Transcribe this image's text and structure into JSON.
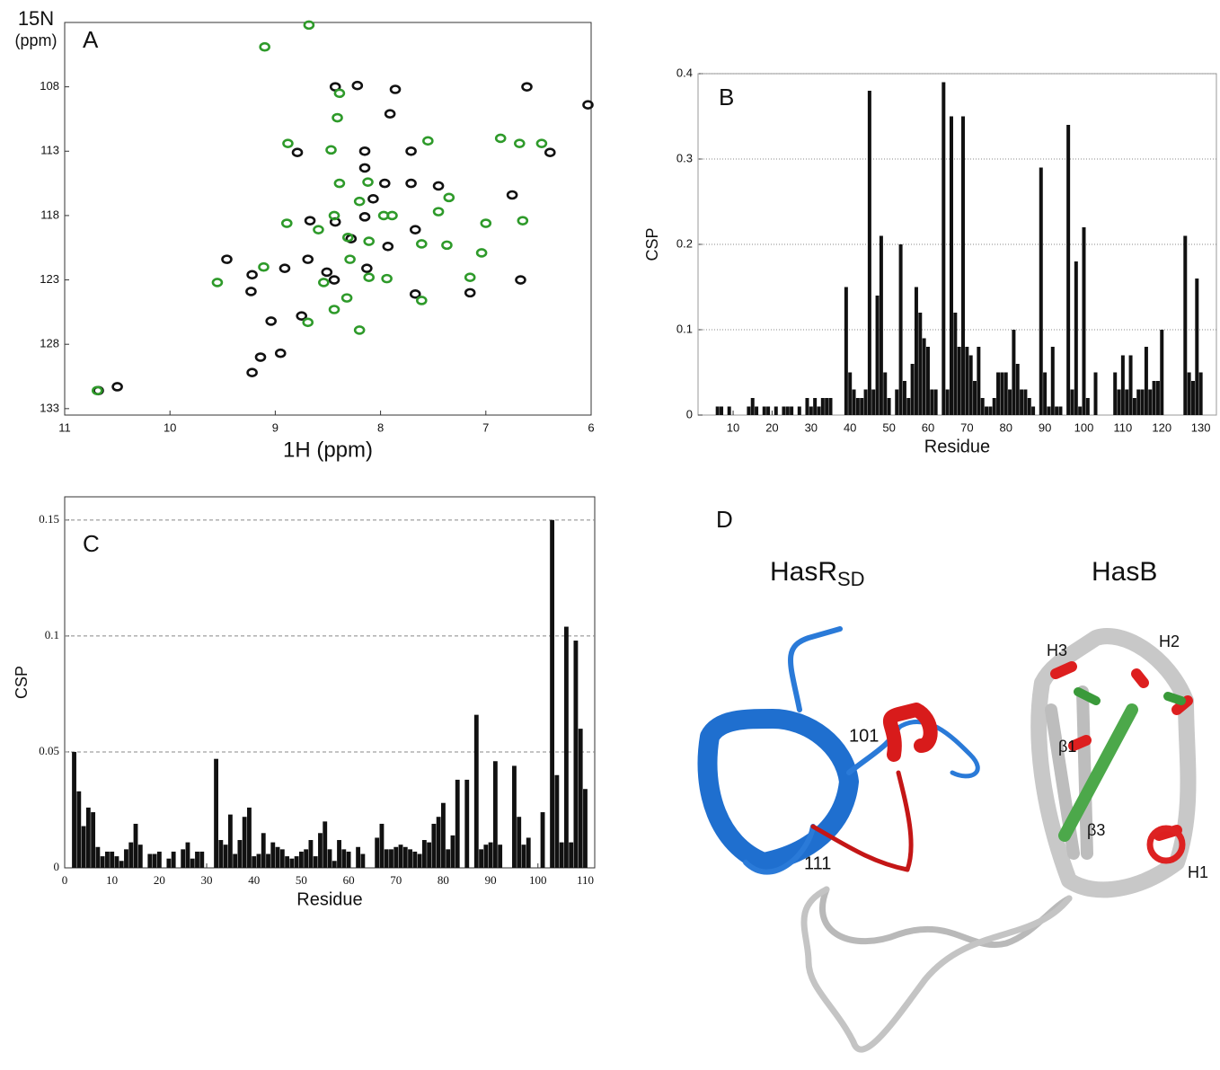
{
  "chart_data": [
    {
      "type": "scatter",
      "panel_label": "A",
      "x_label": "1H (ppm)",
      "y_label_lines": [
        "15N",
        "(ppm)"
      ],
      "xlim": [
        11,
        6
      ],
      "ylim": [
        133.5,
        103
      ],
      "xticks": [
        11,
        10,
        9,
        8,
        7,
        6
      ],
      "yticks": [
        108,
        113,
        118,
        123,
        128,
        133
      ],
      "series": [
        {
          "color": "#111111",
          "x": [
            8.43,
            8.22,
            7.86,
            7.91,
            6.03,
            6.61,
            8.79,
            8.15,
            6.39,
            8.15,
            7.71,
            7.71,
            7.45,
            6.75,
            7.96,
            8.67,
            8.43,
            7.93,
            7.67,
            9.46,
            9.23,
            9.04,
            8.75,
            7.15,
            6.67,
            7.67,
            8.69,
            8.44,
            8.51,
            8.13,
            9.14,
            9.22,
            8.95,
            10.5,
            10.68,
            8.28,
            8.91,
            9.22,
            8.07,
            8.15
          ],
          "values": [
            108.0,
            107.9,
            108.2,
            110.1,
            109.4,
            108.0,
            113.1,
            113.0,
            113.1,
            114.3,
            113.0,
            115.5,
            115.7,
            116.4,
            115.5,
            118.4,
            118.5,
            120.4,
            119.1,
            121.4,
            123.9,
            126.2,
            125.8,
            124.0,
            123.0,
            124.1,
            121.4,
            123.0,
            122.4,
            122.1,
            129.0,
            130.2,
            128.7,
            131.3,
            131.6,
            119.8,
            122.1,
            122.6,
            116.7,
            118.1
          ]
        },
        {
          "color": "#2e9a2a",
          "x": [
            9.1,
            8.39,
            8.41,
            8.47,
            8.88,
            8.39,
            8.12,
            8.2,
            8.44,
            8.59,
            8.31,
            8.11,
            8.29,
            8.11,
            8.44,
            8.2,
            8.69,
            7.89,
            7.61,
            7.35,
            7.55,
            7.37,
            6.86,
            6.68,
            6.47,
            6.65,
            7.0,
            9.55,
            9.11,
            10.69,
            8.89,
            8.54,
            8.32,
            7.97,
            7.45,
            7.94,
            7.15,
            8.68,
            7.04,
            7.61
          ],
          "values": [
            104.9,
            108.5,
            110.4,
            112.9,
            112.4,
            115.5,
            115.4,
            116.9,
            118.0,
            119.1,
            119.7,
            120.0,
            121.4,
            122.8,
            125.3,
            126.9,
            126.3,
            118.0,
            120.2,
            116.6,
            112.2,
            120.3,
            112.0,
            112.4,
            112.4,
            118.4,
            118.6,
            123.2,
            122.0,
            131.6,
            118.6,
            123.2,
            124.4,
            118.0,
            117.7,
            122.9,
            122.8,
            103.2,
            120.9,
            124.6
          ]
        }
      ]
    },
    {
      "type": "bar",
      "panel_label": "B",
      "x_label": "Residue",
      "y_label": "CSP",
      "color": "#111111",
      "grid": true,
      "xlim": [
        1,
        134
      ],
      "ylim": [
        0,
        0.4
      ],
      "xticks": [
        10,
        20,
        30,
        40,
        50,
        60,
        70,
        80,
        90,
        100,
        110,
        120,
        130
      ],
      "yticks": [
        0,
        0.1,
        0.2,
        0.3,
        0.4
      ],
      "x": [
        6,
        7,
        9,
        14,
        15,
        16,
        18,
        19,
        21,
        23,
        24,
        25,
        27,
        29,
        30,
        31,
        32,
        33,
        34,
        35,
        39,
        40,
        41,
        42,
        43,
        44,
        45,
        46,
        47,
        48,
        49,
        50,
        52,
        53,
        54,
        55,
        56,
        57,
        58,
        59,
        60,
        61,
        62,
        64,
        65,
        66,
        67,
        68,
        69,
        70,
        71,
        72,
        73,
        74,
        75,
        76,
        77,
        78,
        79,
        80,
        81,
        82,
        83,
        84,
        85,
        86,
        87,
        89,
        90,
        91,
        92,
        93,
        94,
        96,
        97,
        98,
        99,
        100,
        101,
        103,
        108,
        109,
        110,
        111,
        112,
        113,
        114,
        115,
        116,
        117,
        118,
        119,
        120,
        126,
        127,
        128,
        129,
        130
      ],
      "values": [
        0.01,
        0.01,
        0.01,
        0.01,
        0.02,
        0.01,
        0.01,
        0.01,
        0.01,
        0.01,
        0.01,
        0.01,
        0.01,
        0.02,
        0.01,
        0.02,
        0.01,
        0.02,
        0.02,
        0.02,
        0.15,
        0.05,
        0.03,
        0.02,
        0.02,
        0.03,
        0.38,
        0.03,
        0.14,
        0.21,
        0.05,
        0.02,
        0.03,
        0.2,
        0.04,
        0.02,
        0.06,
        0.15,
        0.12,
        0.09,
        0.08,
        0.03,
        0.03,
        0.39,
        0.03,
        0.35,
        0.12,
        0.08,
        0.35,
        0.08,
        0.07,
        0.04,
        0.08,
        0.02,
        0.01,
        0.01,
        0.02,
        0.05,
        0.05,
        0.05,
        0.03,
        0.1,
        0.06,
        0.03,
        0.03,
        0.02,
        0.01,
        0.29,
        0.05,
        0.01,
        0.08,
        0.01,
        0.01,
        0.34,
        0.03,
        0.18,
        0.01,
        0.22,
        0.02,
        0.05,
        0.05,
        0.03,
        0.07,
        0.03,
        0.07,
        0.02,
        0.03,
        0.03,
        0.08,
        0.03,
        0.04,
        0.04,
        0.1,
        0.21,
        0.05,
        0.04,
        0.16,
        0.05
      ]
    },
    {
      "type": "bar",
      "panel_label": "C",
      "x_label": "Residue",
      "y_label": "CSP",
      "color": "#111111",
      "grid": true,
      "xlim": [
        0,
        112
      ],
      "ylim": [
        0,
        0.16
      ],
      "xticks": [
        0,
        10,
        20,
        30,
        40,
        50,
        60,
        70,
        80,
        90,
        100,
        110
      ],
      "yticks": [
        0,
        0.05,
        0.1,
        0.15
      ],
      "x": [
        2,
        3,
        4,
        5,
        6,
        7,
        8,
        9,
        10,
        11,
        12,
        13,
        14,
        15,
        16,
        18,
        19,
        20,
        22,
        23,
        25,
        26,
        27,
        28,
        29,
        32,
        33,
        34,
        35,
        36,
        37,
        38,
        39,
        40,
        41,
        42,
        43,
        44,
        45,
        46,
        47,
        48,
        49,
        50,
        51,
        52,
        53,
        54,
        55,
        56,
        57,
        58,
        59,
        60,
        62,
        63,
        66,
        67,
        68,
        69,
        70,
        71,
        72,
        73,
        74,
        75,
        76,
        77,
        78,
        79,
        80,
        81,
        82,
        83,
        85,
        87,
        88,
        89,
        90,
        91,
        92,
        95,
        96,
        97,
        98,
        101,
        103,
        104,
        105,
        106,
        107,
        108,
        109,
        110
      ],
      "values": [
        0.05,
        0.033,
        0.018,
        0.026,
        0.024,
        0.009,
        0.005,
        0.007,
        0.007,
        0.005,
        0.003,
        0.008,
        0.011,
        0.019,
        0.01,
        0.006,
        0.006,
        0.007,
        0.004,
        0.007,
        0.008,
        0.011,
        0.004,
        0.007,
        0.007,
        0.047,
        0.012,
        0.01,
        0.023,
        0.006,
        0.012,
        0.022,
        0.026,
        0.005,
        0.006,
        0.015,
        0.006,
        0.011,
        0.009,
        0.008,
        0.005,
        0.004,
        0.005,
        0.007,
        0.008,
        0.012,
        0.005,
        0.015,
        0.02,
        0.008,
        0.003,
        0.012,
        0.008,
        0.007,
        0.009,
        0.006,
        0.013,
        0.019,
        0.008,
        0.008,
        0.009,
        0.01,
        0.009,
        0.008,
        0.007,
        0.006,
        0.012,
        0.011,
        0.019,
        0.022,
        0.028,
        0.008,
        0.014,
        0.038,
        0.038,
        0.066,
        0.008,
        0.01,
        0.011,
        0.046,
        0.01,
        0.044,
        0.022,
        0.01,
        0.013,
        0.024,
        0.15,
        0.04,
        0.011,
        0.104,
        0.011,
        0.098,
        0.06,
        0.034
      ]
    }
  ],
  "structure": {
    "panel_label": "D",
    "molecules": [
      {
        "name": "HasR",
        "subscript": "SD"
      },
      {
        "name": "HasB"
      }
    ],
    "labels": [
      "101",
      "111",
      "H3",
      "H2",
      "β1",
      "β3",
      "H1"
    ]
  }
}
